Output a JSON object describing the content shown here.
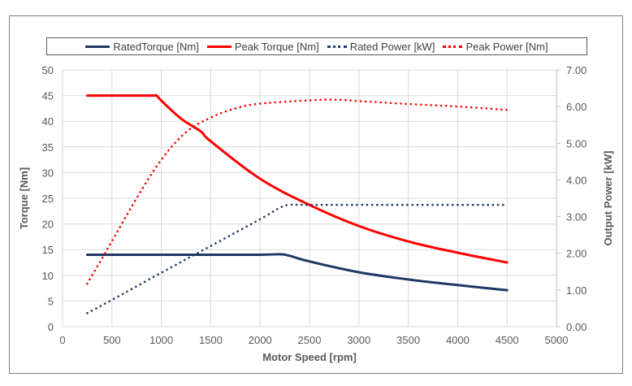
{
  "chart_data": {
    "type": "line",
    "title": "",
    "xlabel": "Motor Speed [rpm]",
    "ylabel": "Torque [Nm]",
    "y2label": "Output Power [kW]",
    "xlim": [
      0,
      5000
    ],
    "ylim": [
      0,
      50
    ],
    "y2lim": [
      0,
      7
    ],
    "x_ticks": [
      "0",
      "500",
      "1000",
      "1500",
      "2000",
      "2500",
      "3000",
      "3500",
      "4000",
      "4500",
      "5000"
    ],
    "y_ticks": [
      "0",
      "5",
      "10",
      "15",
      "20",
      "25",
      "30",
      "35",
      "40",
      "45",
      "50"
    ],
    "y2_ticks": [
      "0.00",
      "1.00",
      "2.00",
      "3.00",
      "4.00",
      "5.00",
      "6.00",
      "7.00"
    ],
    "grid": true,
    "legend_position": "top",
    "series": [
      {
        "name": "RatedTorque [Nm]",
        "axis": "left",
        "style": "solid",
        "color": "#1f3864",
        "x": [
          250,
          500,
          1000,
          1500,
          2000,
          2200,
          2300,
          2500,
          3000,
          3500,
          4000,
          4500
        ],
        "y": [
          14.0,
          14.0,
          14.0,
          14.0,
          14.0,
          14.1,
          13.8,
          12.7,
          10.6,
          9.2,
          8.1,
          7.1
        ]
      },
      {
        "name": "Peak Torque [Nm]",
        "axis": "left",
        "style": "solid",
        "color": "#ff0000",
        "x": [
          250,
          500,
          900,
          950,
          1000,
          1200,
          1400,
          1500,
          2000,
          2500,
          3000,
          3500,
          4000,
          4500
        ],
        "y": [
          45.0,
          45.0,
          45.0,
          45.0,
          44.0,
          40.5,
          38.0,
          36.1,
          28.8,
          23.7,
          19.6,
          16.6,
          14.4,
          12.5
        ]
      },
      {
        "name": "Rated Power [kW]",
        "axis": "right",
        "style": "dotted",
        "color": "#1f3864",
        "x": [
          250,
          500,
          1000,
          1500,
          2000,
          2200,
          2300,
          2500,
          3000,
          3500,
          4000,
          4500
        ],
        "y": [
          0.37,
          0.73,
          1.47,
          2.2,
          2.93,
          3.24,
          3.32,
          3.32,
          3.32,
          3.32,
          3.32,
          3.32
        ]
      },
      {
        "name": "Peak Power [Nm]",
        "axis": "right",
        "style": "dotted",
        "color": "#ff0000",
        "x": [
          250,
          500,
          750,
          1000,
          1250,
          1500,
          1750,
          2000,
          2500,
          2750,
          3000,
          3500,
          4000,
          4500
        ],
        "y": [
          1.17,
          2.33,
          3.5,
          4.55,
          5.3,
          5.7,
          5.95,
          6.08,
          6.17,
          6.19,
          6.15,
          6.07,
          6.0,
          5.91
        ]
      }
    ]
  }
}
